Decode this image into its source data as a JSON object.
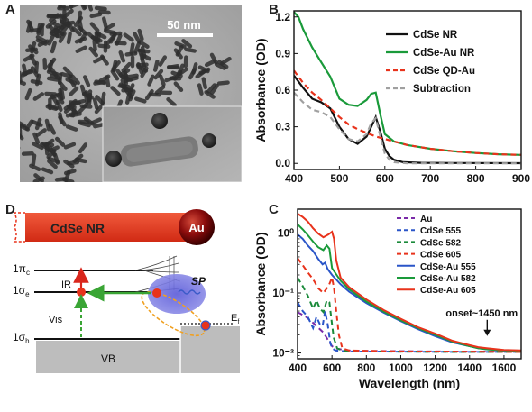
{
  "panels": {
    "a": {
      "letter": "A",
      "scale_bar": "50 nm"
    },
    "b": {
      "letter": "B"
    },
    "c": {
      "letter": "C"
    },
    "d": {
      "letter": "D",
      "nr_label": "CdSe NR",
      "au_label": "Au",
      "pi_c": "1π",
      "pi_c_sub": "c",
      "sigma_e": "1σ",
      "sigma_e_sub": "e",
      "sigma_h": "1σ",
      "sigma_h_sub": "h",
      "ir": "IR",
      "vis": "Vis",
      "sp": "SP",
      "ef": "E",
      "ef_sub": "f",
      "vb": "VB",
      "colors": {
        "nr": "#e8331c",
        "au": "#8b0c0c",
        "ir_arrow": "#d9261c",
        "transfer_arrow": "#3aa535",
        "vis_arrow": "#3aa535",
        "sp_blob": "#6a6ad6",
        "vb": "#bdbdbd"
      }
    }
  },
  "chart_data": [
    {
      "type": "line",
      "xlabel": "",
      "ylabel": "Absorbance (OD)",
      "xlim": [
        400,
        900
      ],
      "ylim": [
        -0.05,
        1.25
      ],
      "xticks": [
        400,
        500,
        600,
        700,
        800,
        900
      ],
      "yticks": [
        0.0,
        0.3,
        0.6,
        0.9,
        1.2
      ],
      "ytick_labels": [
        "0.0",
        "0.3",
        "0.6",
        "0.9",
        "1.2"
      ],
      "legend_position": "top-right",
      "series": [
        {
          "name": "CdSe NR",
          "color": "#111111",
          "dash": "solid",
          "x": [
            400,
            420,
            440,
            460,
            480,
            500,
            520,
            540,
            560,
            570,
            580,
            590,
            600,
            610,
            620,
            640,
            680,
            750,
            900
          ],
          "y": [
            0.72,
            0.62,
            0.53,
            0.5,
            0.45,
            0.3,
            0.2,
            0.16,
            0.22,
            0.3,
            0.38,
            0.26,
            0.12,
            0.06,
            0.03,
            0.01,
            0.005,
            0.003,
            0.002
          ]
        },
        {
          "name": "CdSe-Au NR",
          "color": "#1a9a3a",
          "dash": "solid",
          "x": [
            400,
            410,
            420,
            440,
            460,
            480,
            500,
            520,
            540,
            560,
            570,
            580,
            590,
            600,
            620,
            650,
            700,
            750,
            800,
            850,
            900
          ],
          "y": [
            1.24,
            1.2,
            1.1,
            0.95,
            0.83,
            0.71,
            0.53,
            0.48,
            0.47,
            0.52,
            0.57,
            0.58,
            0.4,
            0.24,
            0.18,
            0.15,
            0.12,
            0.1,
            0.085,
            0.075,
            0.07
          ]
        },
        {
          "name": "CdSe QD-Au",
          "color": "#e8331c",
          "dash": "dashed",
          "x": [
            400,
            420,
            440,
            460,
            480,
            500,
            520,
            540,
            560,
            580,
            600,
            620,
            650,
            700,
            750,
            800,
            850,
            900
          ],
          "y": [
            0.76,
            0.66,
            0.58,
            0.52,
            0.45,
            0.38,
            0.32,
            0.28,
            0.25,
            0.22,
            0.2,
            0.18,
            0.15,
            0.12,
            0.1,
            0.085,
            0.075,
            0.07
          ]
        },
        {
          "name": "Subtraction",
          "color": "#a0a0a0",
          "dash": "dashed",
          "x": [
            400,
            420,
            440,
            460,
            480,
            500,
            520,
            540,
            560,
            570,
            580,
            590,
            600,
            610,
            620,
            650,
            700,
            800,
            900
          ],
          "y": [
            0.58,
            0.5,
            0.44,
            0.42,
            0.38,
            0.28,
            0.2,
            0.18,
            0.24,
            0.33,
            0.37,
            0.22,
            0.08,
            0.03,
            0.01,
            0.0,
            0.0,
            0.0,
            0.0
          ]
        }
      ]
    },
    {
      "type": "line",
      "xlabel": "Wavelength (nm)",
      "ylabel": "Absorbance (OD)",
      "yscale": "log",
      "xlim": [
        400,
        1700
      ],
      "ylim": [
        0.008,
        2.5
      ],
      "xticks": [
        400,
        600,
        800,
        1000,
        1200,
        1400,
        1600
      ],
      "yticks": [
        0.01,
        0.1,
        1.0
      ],
      "ytick_labels": [
        "10⁻²",
        "10⁻¹",
        "10⁰"
      ],
      "legend_position": "top-right",
      "annotation": {
        "text": "onset~1450 nm",
        "x": 1450,
        "y": 0.022
      },
      "series": [
        {
          "name": "Au",
          "color": "#7a2aa8",
          "dash": "dashed",
          "x": [
            400,
            450,
            500,
            550,
            580,
            600,
            620,
            650,
            700,
            800,
            1000,
            1200,
            1400,
            1600,
            1700
          ],
          "y": [
            0.048,
            0.04,
            0.03,
            0.022,
            0.016,
            0.013,
            0.012,
            0.0115,
            0.011,
            0.0108,
            0.0107,
            0.0106,
            0.0105,
            0.0105,
            0.0105
          ]
        },
        {
          "name": "CdSe 555",
          "color": "#2a55c8",
          "dash": "dashed",
          "x": [
            400,
            430,
            460,
            490,
            510,
            530,
            545,
            560,
            575,
            590,
            600,
            620,
            650,
            700,
            1000,
            1400,
            1700
          ],
          "y": [
            0.07,
            0.05,
            0.04,
            0.026,
            0.04,
            0.03,
            0.028,
            0.05,
            0.03,
            0.015,
            0.012,
            0.011,
            0.0108,
            0.0106,
            0.0105,
            0.0104,
            0.0104
          ]
        },
        {
          "name": "CdSe 582",
          "color": "#1a8a3a",
          "dash": "dashed",
          "x": [
            400,
            430,
            460,
            490,
            510,
            530,
            550,
            570,
            585,
            600,
            610,
            630,
            660,
            700,
            1000,
            1400,
            1700
          ],
          "y": [
            0.18,
            0.13,
            0.09,
            0.055,
            0.075,
            0.055,
            0.048,
            0.075,
            0.07,
            0.03,
            0.018,
            0.012,
            0.011,
            0.0107,
            0.0105,
            0.0104,
            0.0104
          ]
        },
        {
          "name": "CdSe 605",
          "color": "#e8331c",
          "dash": "dashed",
          "x": [
            400,
            430,
            460,
            490,
            520,
            550,
            580,
            600,
            612,
            625,
            640,
            660,
            700,
            1000,
            1400,
            1700
          ],
          "y": [
            0.38,
            0.29,
            0.22,
            0.17,
            0.12,
            0.1,
            0.13,
            0.18,
            0.12,
            0.05,
            0.02,
            0.012,
            0.011,
            0.0106,
            0.0105,
            0.0104
          ]
        },
        {
          "name": "CdSe-Au 555",
          "color": "#2a55c8",
          "dash": "solid",
          "x": [
            400,
            430,
            460,
            490,
            520,
            545,
            560,
            575,
            600,
            650,
            700,
            800,
            900,
            1000,
            1100,
            1200,
            1300,
            1400,
            1450,
            1500,
            1600,
            1700
          ],
          "y": [
            0.95,
            0.8,
            0.62,
            0.5,
            0.37,
            0.3,
            0.32,
            0.25,
            0.2,
            0.14,
            0.105,
            0.068,
            0.047,
            0.034,
            0.025,
            0.019,
            0.015,
            0.013,
            0.012,
            0.0115,
            0.011,
            0.0108
          ]
        },
        {
          "name": "CdSe-Au 582",
          "color": "#1a9a3a",
          "dash": "solid",
          "x": [
            400,
            430,
            460,
            490,
            520,
            550,
            570,
            585,
            600,
            650,
            700,
            800,
            900,
            1000,
            1100,
            1200,
            1300,
            1400,
            1450,
            1500,
            1600,
            1700
          ],
          "y": [
            1.4,
            1.15,
            0.92,
            0.72,
            0.58,
            0.52,
            0.62,
            0.55,
            0.26,
            0.16,
            0.115,
            0.072,
            0.049,
            0.035,
            0.026,
            0.02,
            0.0155,
            0.013,
            0.012,
            0.0115,
            0.011,
            0.0108
          ]
        },
        {
          "name": "CdSe-Au 605",
          "color": "#e8331c",
          "dash": "solid",
          "x": [
            400,
            430,
            460,
            490,
            520,
            550,
            580,
            600,
            612,
            625,
            650,
            700,
            800,
            900,
            1000,
            1100,
            1200,
            1300,
            1400,
            1450,
            1500,
            1600,
            1700
          ],
          "y": [
            2.1,
            1.85,
            1.55,
            1.2,
            0.98,
            0.85,
            0.95,
            1.05,
            0.8,
            0.35,
            0.18,
            0.125,
            0.078,
            0.052,
            0.037,
            0.027,
            0.021,
            0.016,
            0.0135,
            0.0125,
            0.012,
            0.0112,
            0.011
          ]
        }
      ]
    }
  ]
}
